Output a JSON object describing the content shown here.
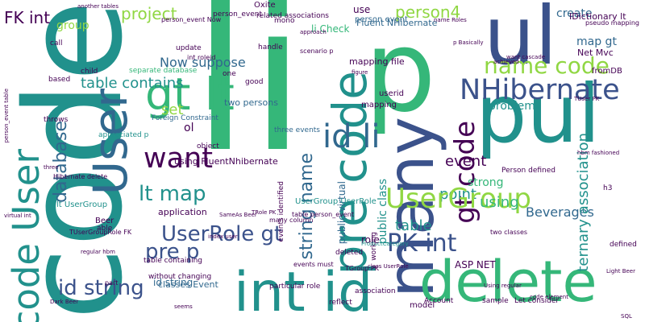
{
  "title": "",
  "palette": {
    "background": "#ffffff",
    "dark_purple": "#440154",
    "indigo": "#3b528b",
    "blue": "#31688e",
    "teal": "#21918c",
    "green": "#35b779",
    "light_green": "#5ec962",
    "lime": "#90d743",
    "yellow": "#fde725"
  },
  "words": [
    "li",
    "code",
    "p",
    "ul",
    "pul",
    "User",
    "many",
    "delete",
    "int id",
    "gt lt",
    "pre code",
    "id li",
    "NHibernate",
    "code User",
    "name code",
    "want",
    "lt map",
    "UserRole gt",
    "pre p",
    "id string",
    "PK int",
    "FK int",
    "project",
    "person4",
    "group",
    "database",
    "table contains",
    "Now suppose",
    "gt code",
    "role",
    "set",
    "event",
    "point",
    "table",
    "UserGroup",
    "using",
    "strong",
    "Beverages",
    "string name",
    "ternary association",
    "map gt",
    "create",
    "person event",
    "public virtual",
    "classes Event",
    "mapping file",
    "IDictionary lt",
    "Fluent NHibernate",
    "two persons",
    "Foreign Constraint",
    "three events",
    "id string",
    "li Check",
    "using FluentNhibernate",
    "application",
    "Account",
    "public class",
    "events identified",
    "model",
    "UserGroup UserRole",
    "ASP NET",
    "Net Mvc",
    "fromDB",
    "person_event",
    "Beer",
    "Dark Beer",
    "sample",
    "Let consider",
    "association",
    "lt UserGroup",
    "reflect",
    "child",
    "handle",
    "update",
    "appreciated p",
    "call",
    "mono",
    "separate database",
    "table person_event",
    "three",
    "throws",
    "two classes",
    "deleted",
    "working",
    "h3",
    "problem",
    "defined",
    "Light Beer",
    "userid",
    "ProductCategory",
    "object",
    "good",
    "mapping",
    "virtual int",
    "use",
    "Oxite",
    "related associations",
    "another tables",
    "person_event Now",
    "approach",
    "scenario p",
    "name Roles",
    "p Basically",
    "int roleid",
    "figure",
    "ol",
    "one",
    "hbm fashioned",
    "Person defined",
    "able",
    "regular hbm",
    "table containing",
    "events must",
    "particular role",
    "without changing",
    "TUserGroupRole FK",
    "TUser PK",
    "class UserRole",
    "want cascade",
    "achieved",
    "based",
    "pseudo mapping",
    "TGroup PK",
    "code element",
    "Using regular",
    "person_event table",
    "part",
    "seems",
    "TRole PK",
    "SameAs Beer",
    "index user",
    "many column",
    "Hibernate delete",
    "SQL"
  ]
}
